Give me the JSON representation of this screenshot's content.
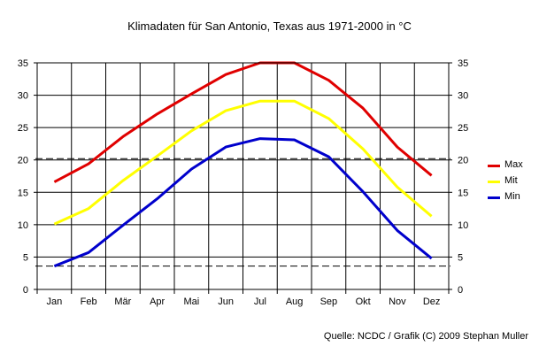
{
  "chart_data": {
    "type": "line",
    "title": "Klimadaten für San Antonio, Texas aus 1971-2000 in °C",
    "categories": [
      "Jan",
      "Feb",
      "Mär",
      "Apr",
      "Mai",
      "Jun",
      "Jul",
      "Aug",
      "Sep",
      "Okt",
      "Nov",
      "Dez"
    ],
    "yticks": [
      0,
      5,
      10,
      15,
      20,
      25,
      30,
      35
    ],
    "ylim": [
      0,
      35
    ],
    "grid": true,
    "dashed_lines": [
      35,
      20.2,
      3.6
    ],
    "legend_position": "right",
    "series": [
      {
        "name": "Max",
        "color": "#e00000",
        "values": [
          16.6,
          19.4,
          23.6,
          27.1,
          30.2,
          33.2,
          35.0,
          35.0,
          32.3,
          28.0,
          22.0,
          17.6
        ]
      },
      {
        "name": "Mit",
        "color": "#ffff00",
        "values": [
          10.1,
          12.5,
          16.8,
          20.6,
          24.5,
          27.6,
          29.1,
          29.1,
          26.4,
          21.7,
          15.8,
          11.3
        ]
      },
      {
        "name": "Min",
        "color": "#0000cc",
        "values": [
          3.6,
          5.7,
          9.9,
          14.0,
          18.6,
          22.0,
          23.3,
          23.1,
          20.5,
          15.1,
          9.1,
          4.8
        ]
      }
    ],
    "source": "Quelle: NCDC / Grafik (C) 2009 Stephan Muller"
  }
}
